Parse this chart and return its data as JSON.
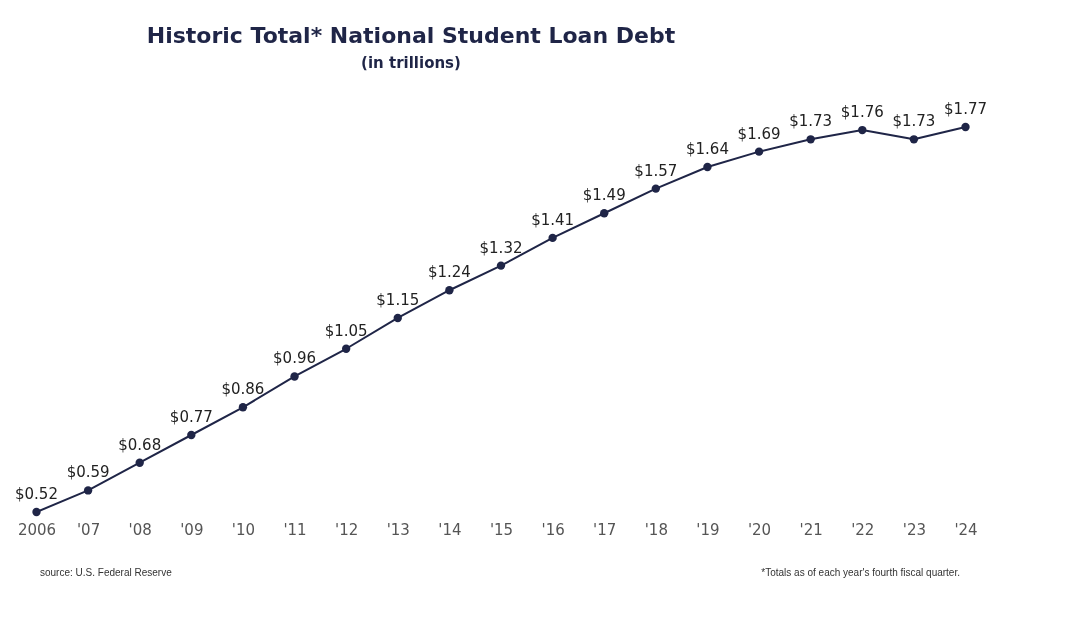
{
  "chart_data": {
    "type": "line",
    "title": "Historic Total* National Student Loan Debt",
    "subtitle": "(in trillions)",
    "categories": [
      "2006",
      "'07",
      "'08",
      "'09",
      "'10",
      "'11",
      "'12",
      "'13",
      "'14",
      "'15",
      "'16",
      "'17",
      "'18",
      "'19",
      "'20",
      "'21",
      "'22",
      "'23",
      "'24"
    ],
    "values": [
      0.52,
      0.59,
      0.68,
      0.77,
      0.86,
      0.96,
      1.05,
      1.15,
      1.24,
      1.32,
      1.41,
      1.49,
      1.57,
      1.64,
      1.69,
      1.73,
      1.76,
      1.73,
      1.77
    ],
    "value_labels": [
      "$0.52",
      "$0.59",
      "$0.68",
      "$0.77",
      "$0.86",
      "$0.96",
      "$1.05",
      "$1.15",
      "$1.24",
      "$1.32",
      "$1.41",
      "$1.49",
      "$1.57",
      "$1.64",
      "$1.69",
      "$1.73",
      "$1.76",
      "$1.73",
      "$1.77"
    ],
    "color": "#1f2547",
    "marker": "circle",
    "line_style": "solid",
    "annotations": [
      "source: U.S. Federal Reserve",
      "*Totals as of each year's fourth fiscal quarter."
    ]
  }
}
